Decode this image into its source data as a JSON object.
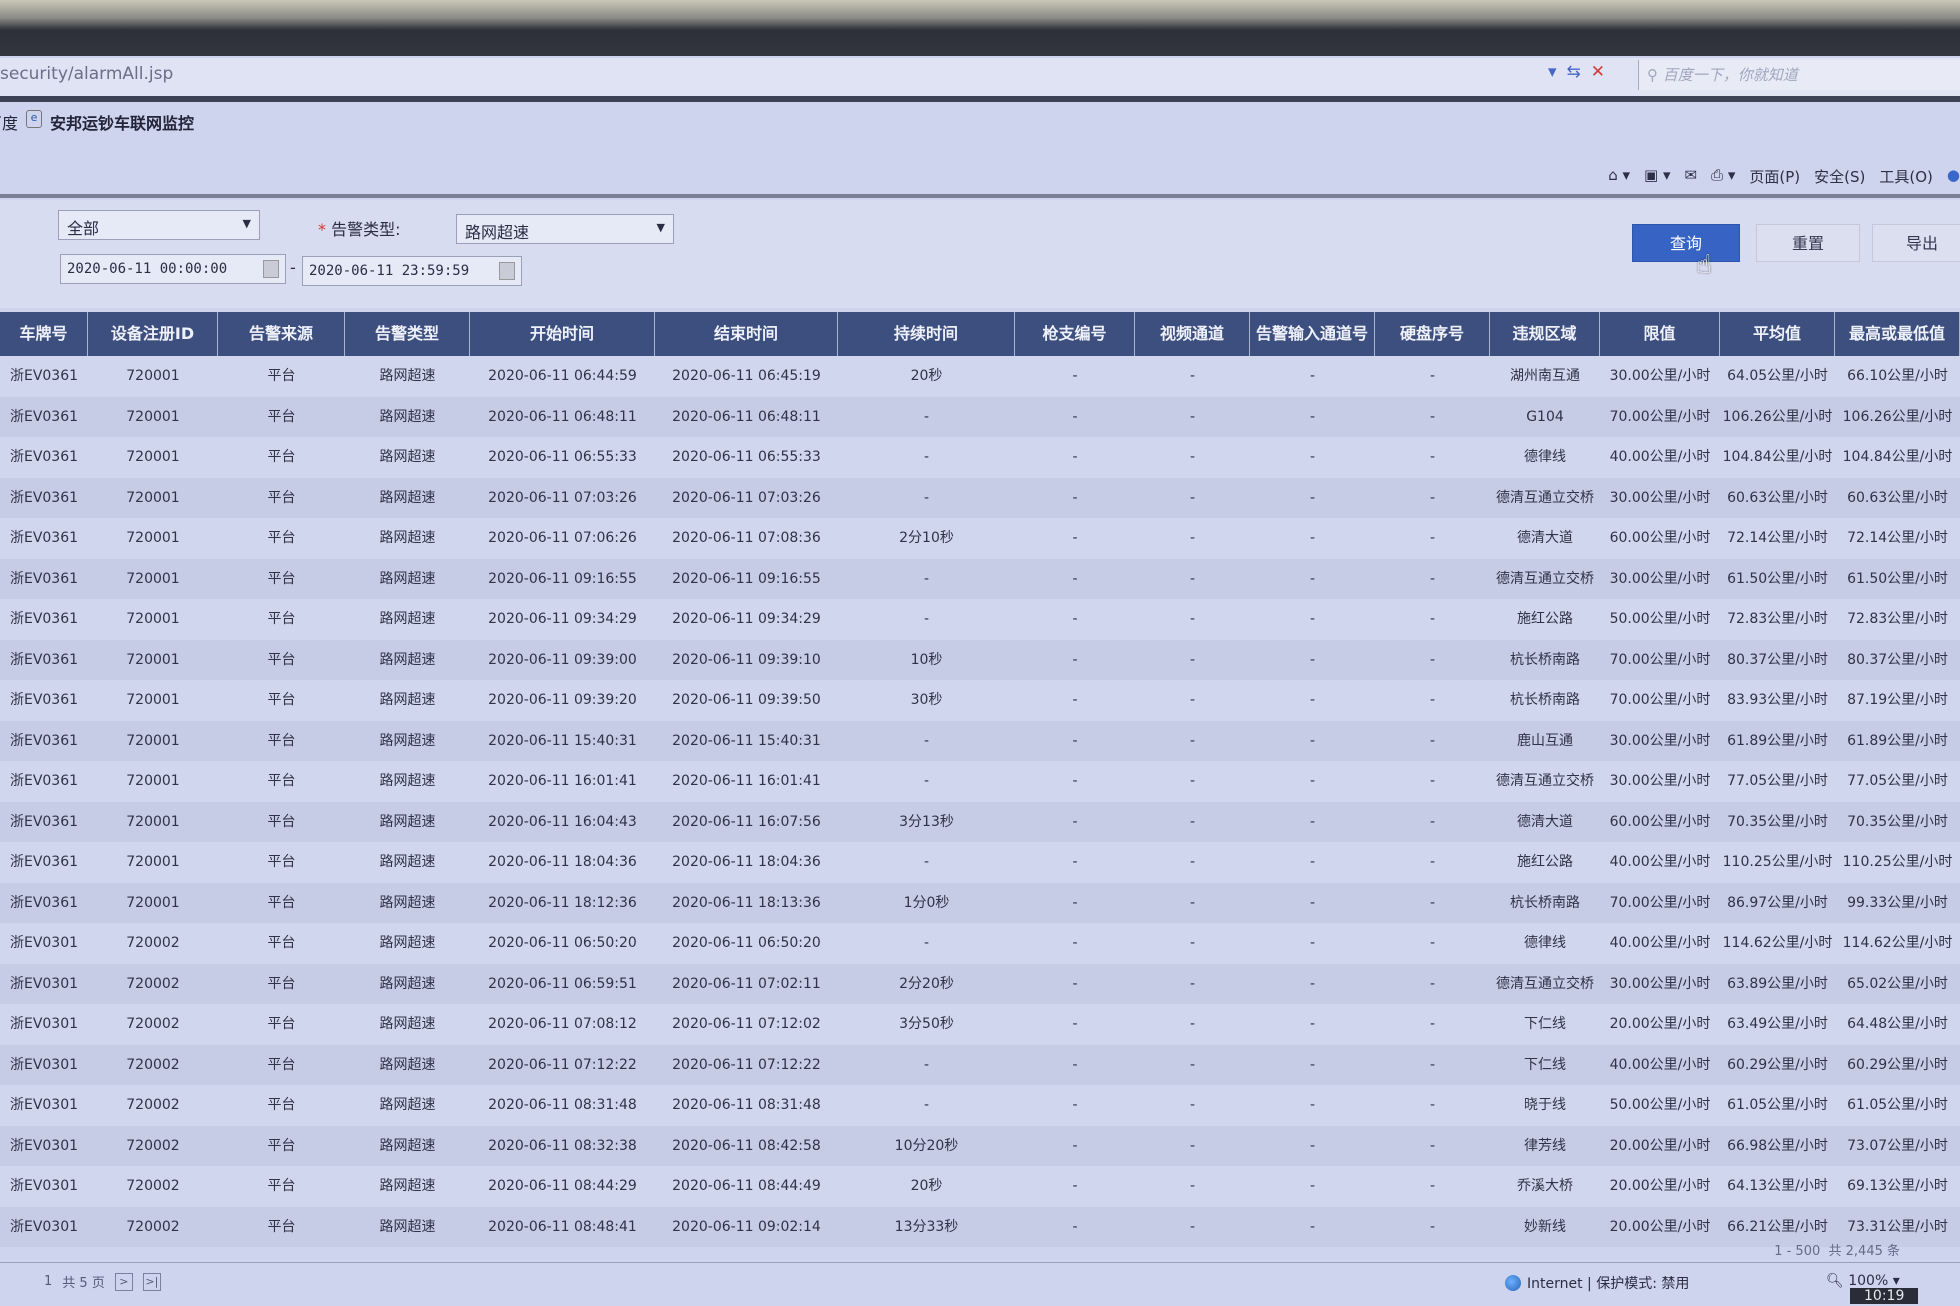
{
  "browser": {
    "url": "security/alarmAll.jsp",
    "search_placeholder": "百度一下，你就知道",
    "favorites": [
      "百度",
      "安邦运钞车联网监控"
    ],
    "menu": [
      "页面(P)",
      "安全(S)",
      "工具(O)"
    ],
    "status_zone": "Internet | 保护模式: 禁用",
    "zoom_level": "100%",
    "clock": "10:19"
  },
  "filter": {
    "first_select": "全部",
    "alarm_type_label": "告警类型:",
    "alarm_type_value": "路网超速",
    "start_date": "2020-06-11 00:00:00",
    "end_date": "2020-06-11 23:59:59",
    "range_sep": "-",
    "buttons": {
      "query": "查询",
      "reset": "重置",
      "export": "导出"
    }
  },
  "colors": {
    "header_bg": "#3d4f7e",
    "primary_button": "#3663c4"
  },
  "table": {
    "columns": [
      "车牌号",
      "设备注册ID",
      "告警来源",
      "告警类型",
      "开始时间",
      "结束时间",
      "持续时间",
      "枪支编号",
      "视频通道",
      "告警输入通道号",
      "硬盘序号",
      "违规区域",
      "限值",
      "平均值",
      "最高或最低值"
    ],
    "rows": [
      [
        "浙EV0361",
        "720001",
        "平台",
        "路网超速",
        "2020-06-11 06:44:59",
        "2020-06-11 06:45:19",
        "20秒",
        "-",
        "-",
        "-",
        "-",
        "湖州南互通",
        "30.00公里/小时",
        "64.05公里/小时",
        "66.10公里/小时"
      ],
      [
        "浙EV0361",
        "720001",
        "平台",
        "路网超速",
        "2020-06-11 06:48:11",
        "2020-06-11 06:48:11",
        "-",
        "-",
        "-",
        "-",
        "-",
        "G104",
        "70.00公里/小时",
        "106.26公里/小时",
        "106.26公里/小时"
      ],
      [
        "浙EV0361",
        "720001",
        "平台",
        "路网超速",
        "2020-06-11 06:55:33",
        "2020-06-11 06:55:33",
        "-",
        "-",
        "-",
        "-",
        "-",
        "德律线",
        "40.00公里/小时",
        "104.84公里/小时",
        "104.84公里/小时"
      ],
      [
        "浙EV0361",
        "720001",
        "平台",
        "路网超速",
        "2020-06-11 07:03:26",
        "2020-06-11 07:03:26",
        "-",
        "-",
        "-",
        "-",
        "-",
        "德清互通立交桥",
        "30.00公里/小时",
        "60.63公里/小时",
        "60.63公里/小时"
      ],
      [
        "浙EV0361",
        "720001",
        "平台",
        "路网超速",
        "2020-06-11 07:06:26",
        "2020-06-11 07:08:36",
        "2分10秒",
        "-",
        "-",
        "-",
        "-",
        "德清大道",
        "60.00公里/小时",
        "72.14公里/小时",
        "72.14公里/小时"
      ],
      [
        "浙EV0361",
        "720001",
        "平台",
        "路网超速",
        "2020-06-11 09:16:55",
        "2020-06-11 09:16:55",
        "-",
        "-",
        "-",
        "-",
        "-",
        "德清互通立交桥",
        "30.00公里/小时",
        "61.50公里/小时",
        "61.50公里/小时"
      ],
      [
        "浙EV0361",
        "720001",
        "平台",
        "路网超速",
        "2020-06-11 09:34:29",
        "2020-06-11 09:34:29",
        "-",
        "-",
        "-",
        "-",
        "-",
        "施红公路",
        "50.00公里/小时",
        "72.83公里/小时",
        "72.83公里/小时"
      ],
      [
        "浙EV0361",
        "720001",
        "平台",
        "路网超速",
        "2020-06-11 09:39:00",
        "2020-06-11 09:39:10",
        "10秒",
        "-",
        "-",
        "-",
        "-",
        "杭长桥南路",
        "70.00公里/小时",
        "80.37公里/小时",
        "80.37公里/小时"
      ],
      [
        "浙EV0361",
        "720001",
        "平台",
        "路网超速",
        "2020-06-11 09:39:20",
        "2020-06-11 09:39:50",
        "30秒",
        "-",
        "-",
        "-",
        "-",
        "杭长桥南路",
        "70.00公里/小时",
        "83.93公里/小时",
        "87.19公里/小时"
      ],
      [
        "浙EV0361",
        "720001",
        "平台",
        "路网超速",
        "2020-06-11 15:40:31",
        "2020-06-11 15:40:31",
        "-",
        "-",
        "-",
        "-",
        "-",
        "鹿山互通",
        "30.00公里/小时",
        "61.89公里/小时",
        "61.89公里/小时"
      ],
      [
        "浙EV0361",
        "720001",
        "平台",
        "路网超速",
        "2020-06-11 16:01:41",
        "2020-06-11 16:01:41",
        "-",
        "-",
        "-",
        "-",
        "-",
        "德清互通立交桥",
        "30.00公里/小时",
        "77.05公里/小时",
        "77.05公里/小时"
      ],
      [
        "浙EV0361",
        "720001",
        "平台",
        "路网超速",
        "2020-06-11 16:04:43",
        "2020-06-11 16:07:56",
        "3分13秒",
        "-",
        "-",
        "-",
        "-",
        "德清大道",
        "60.00公里/小时",
        "70.35公里/小时",
        "70.35公里/小时"
      ],
      [
        "浙EV0361",
        "720001",
        "平台",
        "路网超速",
        "2020-06-11 18:04:36",
        "2020-06-11 18:04:36",
        "-",
        "-",
        "-",
        "-",
        "-",
        "施红公路",
        "40.00公里/小时",
        "110.25公里/小时",
        "110.25公里/小时"
      ],
      [
        "浙EV0361",
        "720001",
        "平台",
        "路网超速",
        "2020-06-11 18:12:36",
        "2020-06-11 18:13:36",
        "1分0秒",
        "-",
        "-",
        "-",
        "-",
        "杭长桥南路",
        "70.00公里/小时",
        "86.97公里/小时",
        "99.33公里/小时"
      ],
      [
        "浙EV0301",
        "720002",
        "平台",
        "路网超速",
        "2020-06-11 06:50:20",
        "2020-06-11 06:50:20",
        "-",
        "-",
        "-",
        "-",
        "-",
        "德律线",
        "40.00公里/小时",
        "114.62公里/小时",
        "114.62公里/小时"
      ],
      [
        "浙EV0301",
        "720002",
        "平台",
        "路网超速",
        "2020-06-11 06:59:51",
        "2020-06-11 07:02:11",
        "2分20秒",
        "-",
        "-",
        "-",
        "-",
        "德清互通立交桥",
        "30.00公里/小时",
        "63.89公里/小时",
        "65.02公里/小时"
      ],
      [
        "浙EV0301",
        "720002",
        "平台",
        "路网超速",
        "2020-06-11 07:08:12",
        "2020-06-11 07:12:02",
        "3分50秒",
        "-",
        "-",
        "-",
        "-",
        "下仁线",
        "20.00公里/小时",
        "63.49公里/小时",
        "64.48公里/小时"
      ],
      [
        "浙EV0301",
        "720002",
        "平台",
        "路网超速",
        "2020-06-11 07:12:22",
        "2020-06-11 07:12:22",
        "-",
        "-",
        "-",
        "-",
        "-",
        "下仁线",
        "40.00公里/小时",
        "60.29公里/小时",
        "60.29公里/小时"
      ],
      [
        "浙EV0301",
        "720002",
        "平台",
        "路网超速",
        "2020-06-11 08:31:48",
        "2020-06-11 08:31:48",
        "-",
        "-",
        "-",
        "-",
        "-",
        "晓于线",
        "50.00公里/小时",
        "61.05公里/小时",
        "61.05公里/小时"
      ],
      [
        "浙EV0301",
        "720002",
        "平台",
        "路网超速",
        "2020-06-11 08:32:38",
        "2020-06-11 08:42:58",
        "10分20秒",
        "-",
        "-",
        "-",
        "-",
        "律芳线",
        "20.00公里/小时",
        "66.98公里/小时",
        "73.07公里/小时"
      ],
      [
        "浙EV0301",
        "720002",
        "平台",
        "路网超速",
        "2020-06-11 08:44:29",
        "2020-06-11 08:44:49",
        "20秒",
        "-",
        "-",
        "-",
        "-",
        "乔溪大桥",
        "20.00公里/小时",
        "64.13公里/小时",
        "69.13公里/小时"
      ],
      [
        "浙EV0301",
        "720002",
        "平台",
        "路网超速",
        "2020-06-11 08:48:41",
        "2020-06-11 09:02:14",
        "13分33秒",
        "-",
        "-",
        "-",
        "-",
        "妙新线",
        "20.00公里/小时",
        "66.21公里/小时",
        "73.31公里/小时"
      ]
    ]
  },
  "pagination": {
    "current": "1",
    "total_pages": "共 5 页",
    "next": ">",
    "last": ">|",
    "range": "1 - 500",
    "total_records": "共 2,445 条"
  }
}
